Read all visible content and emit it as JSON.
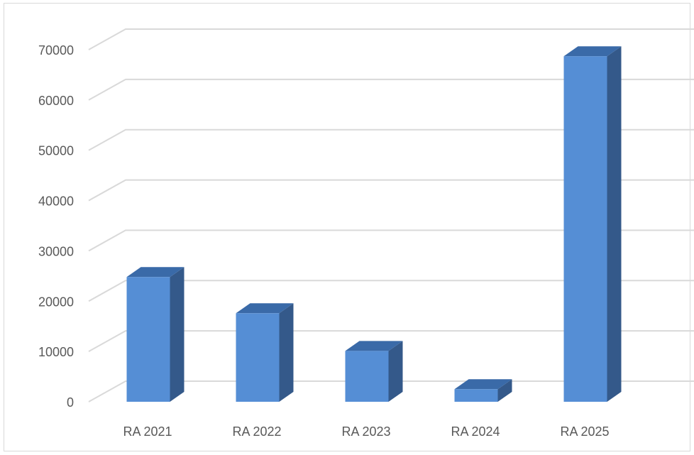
{
  "chart_data": {
    "type": "bar",
    "style": "3d-column",
    "categories": [
      "RA 2021",
      "RA 2022",
      "RA 2023",
      "RA 2024",
      "RA 2025"
    ],
    "values": [
      24800,
      17600,
      10100,
      2500,
      68700
    ],
    "ylim": [
      0,
      70000
    ],
    "yticks": [
      "0",
      "10000",
      "20000",
      "30000",
      "40000",
      "50000",
      "60000",
      "70000"
    ],
    "title": "",
    "xlabel": "",
    "ylabel": "",
    "grid": true,
    "legend": "none",
    "colors": {
      "bar_front": "#558ED5",
      "bar_side": "#34598A",
      "bar_top": "#3A6AA8",
      "grid": "#D9D9D9",
      "text": "#595959"
    }
  }
}
